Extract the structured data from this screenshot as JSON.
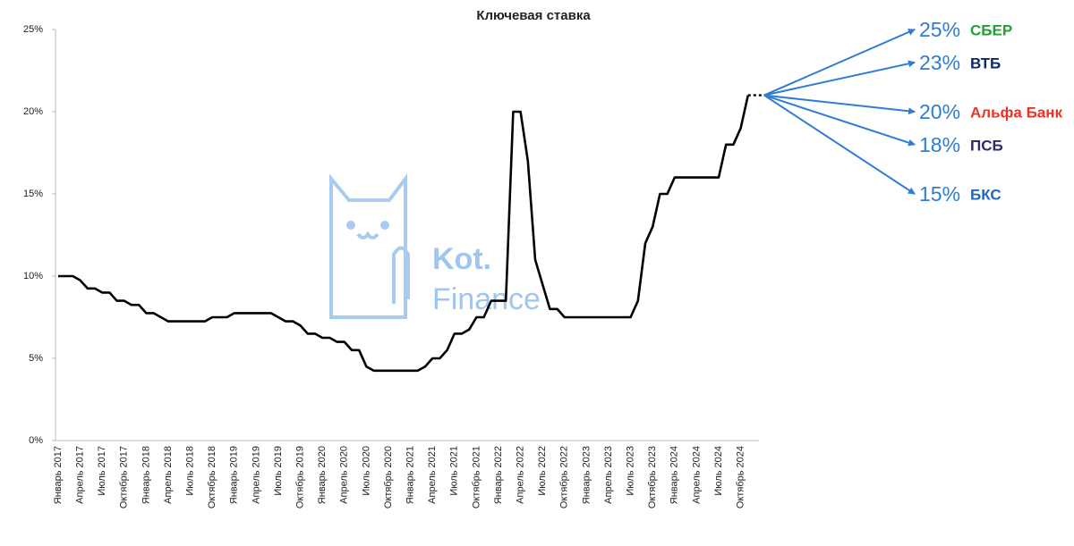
{
  "chart_data": {
    "type": "line",
    "title": "Ключевая ставка",
    "categories": [
      "Январь 2017",
      null,
      null,
      "Апрель 2017",
      null,
      null,
      "Июль 2017",
      null,
      null,
      "Октябрь 2017",
      null,
      null,
      "Январь 2018",
      null,
      null,
      "Апрель 2018",
      null,
      null,
      "Июль 2018",
      null,
      null,
      "Октябрь 2018",
      null,
      null,
      "Январь 2019",
      null,
      null,
      "Апрель 2019",
      null,
      null,
      "Июль 2019",
      null,
      null,
      "Октябрь 2019",
      null,
      null,
      "Январь 2020",
      null,
      null,
      "Апрель 2020",
      null,
      null,
      "Июль 2020",
      null,
      null,
      "Октябрь 2020",
      null,
      null,
      "Январь 2021",
      null,
      null,
      "Апрель 2021",
      null,
      null,
      "Июль 2021",
      null,
      null,
      "Октябрь 2021",
      null,
      null,
      "Январь 2022",
      null,
      null,
      "Апрель 2022",
      null,
      null,
      "Июль 2022",
      null,
      null,
      "Октябрь 2022",
      null,
      null,
      "Январь 2023",
      null,
      null,
      "Апрель 2023",
      null,
      null,
      "Июль 2023",
      null,
      null,
      "Октябрь 2023",
      null,
      null,
      "Январь 2024",
      null,
      null,
      "Апрель 2024",
      null,
      null,
      "Июль 2024",
      null,
      null,
      "Октябрь 2024",
      null
    ],
    "values": [
      10,
      10,
      10,
      9.75,
      9.25,
      9.25,
      9,
      9,
      8.5,
      8.5,
      8.25,
      8.25,
      7.75,
      7.75,
      7.5,
      7.25,
      7.25,
      7.25,
      7.25,
      7.25,
      7.25,
      7.5,
      7.5,
      7.5,
      7.75,
      7.75,
      7.75,
      7.75,
      7.75,
      7.75,
      7.5,
      7.25,
      7.25,
      7,
      6.5,
      6.5,
      6.25,
      6.25,
      6,
      6,
      5.5,
      5.5,
      4.5,
      4.25,
      4.25,
      4.25,
      4.25,
      4.25,
      4.25,
      4.25,
      4.5,
      5,
      5,
      5.5,
      6.5,
      6.5,
      6.75,
      7.5,
      7.5,
      8.5,
      8.5,
      8.5,
      20,
      20,
      17,
      11,
      9.5,
      8,
      8,
      7.5,
      7.5,
      7.5,
      7.5,
      7.5,
      7.5,
      7.5,
      7.5,
      7.5,
      7.5,
      8.5,
      12,
      13,
      15,
      15,
      16,
      16,
      16,
      16,
      16,
      16,
      16,
      18,
      18,
      19,
      21
    ],
    "color": "#000000",
    "ylim": [
      0,
      25
    ],
    "yticks": [
      {
        "value": 0,
        "label": "0%"
      },
      {
        "value": 5,
        "label": "5%"
      },
      {
        "value": 10,
        "label": "10%"
      },
      {
        "value": 15,
        "label": "15%"
      },
      {
        "value": 20,
        "label": "20%"
      },
      {
        "value": 25,
        "label": "25%"
      }
    ],
    "forecast_color": "#2f7bd6",
    "forecasts": [
      {
        "value": 25,
        "label": "25%",
        "bank": "СБЕР",
        "bank_color": "#21a038"
      },
      {
        "value": 23,
        "label": "23%",
        "bank": "ВТБ",
        "bank_color": "#0a2973"
      },
      {
        "value": 20,
        "label": "20%",
        "bank": "Альфа Банк",
        "bank_color": "#ef3124"
      },
      {
        "value": 18,
        "label": "18%",
        "bank": "ПСБ",
        "bank_color": "#2b2a6b"
      },
      {
        "value": 15,
        "label": "15%",
        "bank": "БКС",
        "bank_color": "#1c66c6"
      }
    ],
    "watermark": [
      "Kot.",
      "Finance"
    ]
  }
}
